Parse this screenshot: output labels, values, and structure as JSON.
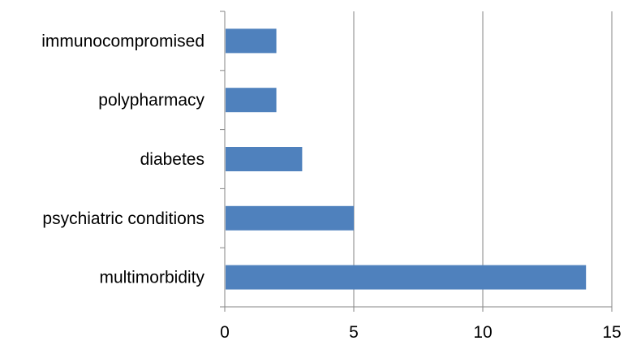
{
  "chart_data": {
    "type": "bar",
    "orientation": "horizontal",
    "categories": [
      "immunocompromised",
      "polypharmacy",
      "diabetes",
      "psychiatric conditions",
      "multimorbidity"
    ],
    "values": [
      2,
      2,
      3,
      5,
      14
    ],
    "title": "",
    "xlabel": "",
    "ylabel": "",
    "xlim": [
      0,
      15
    ],
    "x_ticks": [
      0,
      5,
      10,
      15
    ],
    "x_tick_labels": [
      "0",
      "5",
      "10",
      "15"
    ],
    "grid": "vertical",
    "legend": "none",
    "bar_color": "#4F81BD",
    "grid_color": "#868686"
  }
}
